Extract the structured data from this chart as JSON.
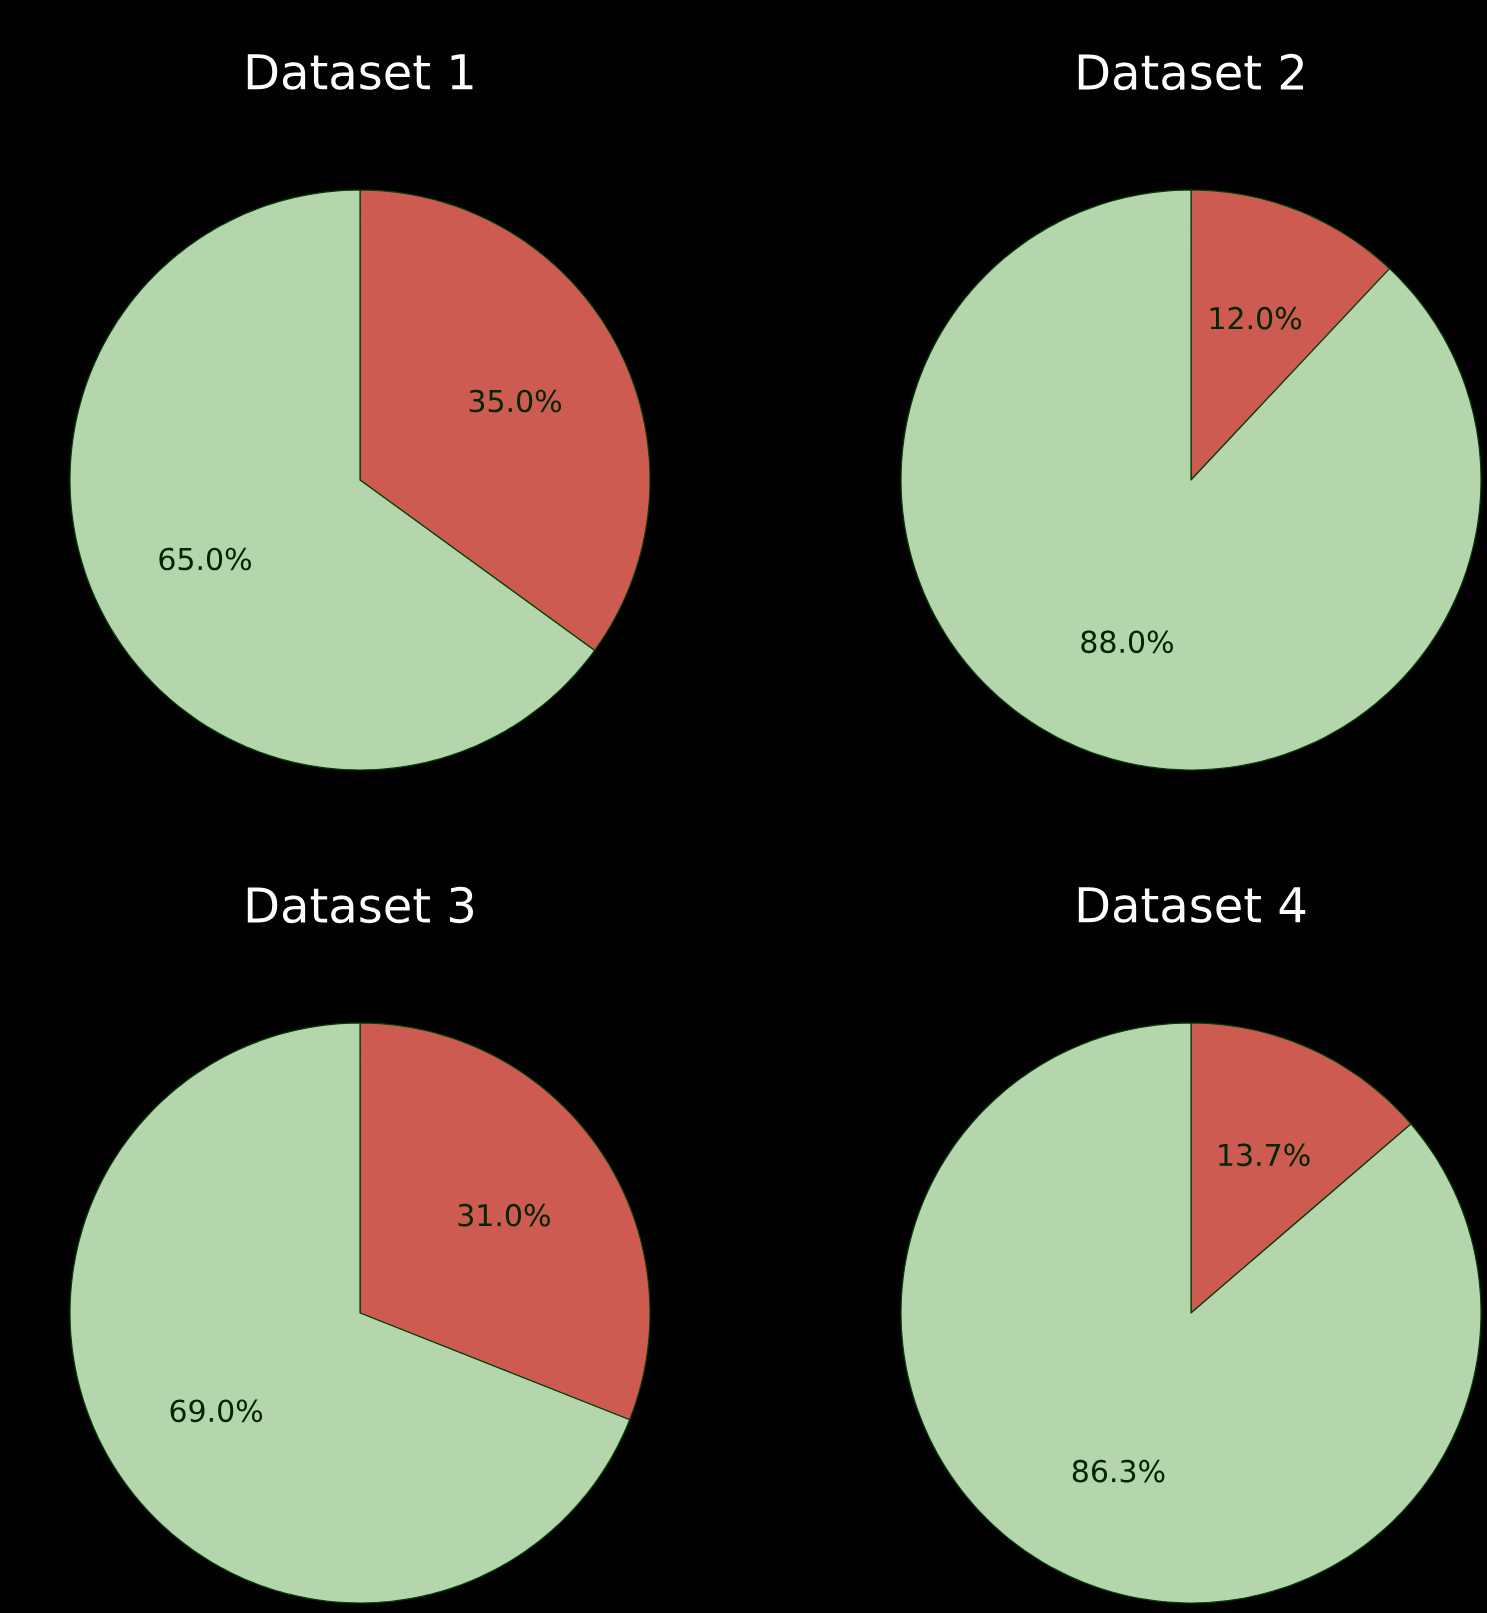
{
  "chart_data": [
    {
      "type": "pie",
      "title": "Dataset 1",
      "categories": [
        null,
        null
      ],
      "values": [
        35.0,
        65.0
      ],
      "colors": [
        "#cd5b51",
        "#b5d5ad"
      ],
      "value_labels": [
        "35.0%",
        "65.0%"
      ]
    },
    {
      "type": "pie",
      "title": "Dataset 2",
      "categories": [
        null,
        null
      ],
      "values": [
        12.0,
        88.0
      ],
      "colors": [
        "#cd5b51",
        "#b5d5ad"
      ],
      "value_labels": [
        "12.0%",
        "88.0%"
      ]
    },
    {
      "type": "pie",
      "title": "Dataset 3",
      "categories": [
        null,
        null
      ],
      "values": [
        31.0,
        69.0
      ],
      "colors": [
        "#cd5b51",
        "#b5d5ad"
      ],
      "value_labels": [
        "31.0%",
        "69.0%"
      ]
    },
    {
      "type": "pie",
      "title": "Dataset 4",
      "categories": [
        null,
        null
      ],
      "values": [
        13.7,
        86.3
      ],
      "colors": [
        "#cd5b51",
        "#b5d5ad"
      ],
      "value_labels": [
        "13.7%",
        "86.3%"
      ]
    }
  ]
}
